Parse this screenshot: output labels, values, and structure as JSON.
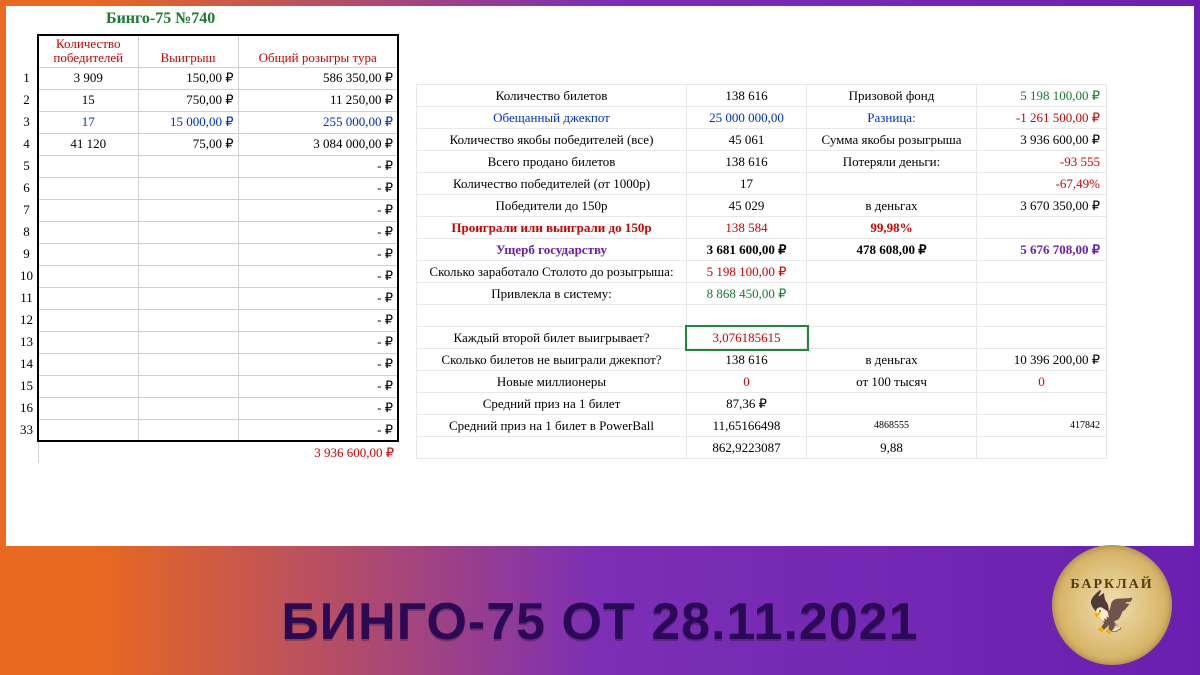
{
  "title": "Бинго-75 №740",
  "colors": {
    "red": "#d00000",
    "blue": "#0030c0",
    "green": "#1a7a2e",
    "purple": "#6a1fb0",
    "black": "#000000"
  },
  "left": {
    "headers": [
      "Количество победителей",
      "Выигрыш",
      "Общий розыгры тура"
    ],
    "rows": [
      {
        "n": "1",
        "w": "3 909",
        "p": "150,00 ₽",
        "t": "586 350,00 ₽",
        "c": "black"
      },
      {
        "n": "2",
        "w": "15",
        "p": "750,00 ₽",
        "t": "11 250,00 ₽",
        "c": "black"
      },
      {
        "n": "3",
        "w": "17",
        "p": "15 000,00 ₽",
        "t": "255 000,00 ₽",
        "c": "blue"
      },
      {
        "n": "4",
        "w": "41 120",
        "p": "75,00 ₽",
        "t": "3 084 000,00 ₽",
        "c": "black"
      },
      {
        "n": "5",
        "w": "",
        "p": "",
        "t": "-   ₽",
        "c": "black"
      },
      {
        "n": "6",
        "w": "",
        "p": "",
        "t": "-   ₽",
        "c": "black"
      },
      {
        "n": "7",
        "w": "",
        "p": "",
        "t": "-   ₽",
        "c": "black"
      },
      {
        "n": "8",
        "w": "",
        "p": "",
        "t": "-   ₽",
        "c": "black"
      },
      {
        "n": "9",
        "w": "",
        "p": "",
        "t": "-   ₽",
        "c": "black"
      },
      {
        "n": "10",
        "w": "",
        "p": "",
        "t": "-   ₽",
        "c": "black"
      },
      {
        "n": "11",
        "w": "",
        "p": "",
        "t": "-   ₽",
        "c": "black"
      },
      {
        "n": "12",
        "w": "",
        "p": "",
        "t": "-   ₽",
        "c": "black"
      },
      {
        "n": "13",
        "w": "",
        "p": "",
        "t": "-   ₽",
        "c": "black"
      },
      {
        "n": "14",
        "w": "",
        "p": "",
        "t": "-   ₽",
        "c": "black"
      },
      {
        "n": "15",
        "w": "",
        "p": "",
        "t": "-   ₽",
        "c": "black"
      },
      {
        "n": "16",
        "w": "",
        "p": "",
        "t": "-   ₽",
        "c": "black"
      },
      {
        "n": "33",
        "w": "",
        "p": "",
        "t": "-   ₽",
        "c": "black"
      }
    ],
    "total": "3 936 600,00 ₽"
  },
  "right": [
    {
      "lbl": "Количество билетов",
      "lc": "black",
      "v1": "138 616",
      "v1c": "black",
      "lbl2": "Призовой фонд",
      "l2c": "black",
      "v2": "5 198 100,00 ₽",
      "v2c": "green"
    },
    {
      "lbl": "Обещанный джекпот",
      "lc": "blue",
      "v1": "25 000 000,00",
      "v1c": "blue",
      "lbl2": "Разница:",
      "l2c": "blue",
      "v2": "-1 261 500,00 ₽",
      "v2c": "red"
    },
    {
      "lbl": "Количество якобы победителей (все)",
      "lc": "black",
      "v1": "45 061",
      "v1c": "black",
      "lbl2": "Сумма якобы розыгрыша",
      "l2c": "black",
      "v2": "3 936 600,00 ₽",
      "v2c": "black"
    },
    {
      "lbl": "Всего продано билетов",
      "lc": "black",
      "v1": "138 616",
      "v1c": "black",
      "lbl2": "Потеряли деньги:",
      "l2c": "black",
      "v2": "-93 555",
      "v2c": "red"
    },
    {
      "lbl": "Количество победителей (от 1000р)",
      "lc": "black",
      "v1": "17",
      "v1c": "black",
      "lbl2": "",
      "l2c": "black",
      "v2": "-67,49%",
      "v2c": "red"
    },
    {
      "lbl": "Победители до 150р",
      "lc": "black",
      "v1": "45 029",
      "v1c": "black",
      "lbl2": "в деньгах",
      "l2c": "black",
      "v2": "3 670 350,00 ₽",
      "v2c": "black"
    },
    {
      "lbl": "Проиграли или выиграли до 150р",
      "lc": "red",
      "bold": true,
      "v1": "138 584",
      "v1c": "red",
      "lbl2": "99,98%",
      "l2c": "red",
      "l2bold": true,
      "v2": "",
      "v2c": "black"
    },
    {
      "lbl": "Ущерб государству",
      "lc": "purple",
      "bold": true,
      "v1": "3 681 600,00 ₽",
      "v1c": "black",
      "v1bold": true,
      "lbl2": "478 608,00 ₽",
      "l2c": "black",
      "l2bold": true,
      "v2": "5 676 708,00 ₽",
      "v2c": "purple",
      "v2bold": true
    },
    {
      "lbl": "Сколько заработало Столото до розыгрыша:",
      "lc": "black",
      "v1": "5 198 100,00 ₽",
      "v1c": "red",
      "lbl2": "",
      "l2c": "black",
      "v2": "",
      "v2c": "black"
    },
    {
      "lbl": "Привлекла в систему:",
      "lc": "black",
      "v1": "8 868 450,00 ₽",
      "v1c": "green",
      "lbl2": "",
      "l2c": "black",
      "v2": "",
      "v2c": "black"
    },
    {
      "lbl": "",
      "lc": "black",
      "v1": "",
      "v1c": "black",
      "lbl2": "",
      "l2c": "black",
      "v2": "",
      "v2c": "black"
    },
    {
      "lbl": "Каждый второй билет выигрывает?",
      "lc": "black",
      "v1": "3,076185615",
      "v1c": "red",
      "v1box": true,
      "lbl2": "",
      "l2c": "black",
      "v2": "",
      "v2c": "black"
    },
    {
      "lbl": "Сколько билетов не выиграли джекпот?",
      "lc": "black",
      "v1": "138 616",
      "v1c": "black",
      "lbl2": "в деньгах",
      "l2c": "black",
      "v2": "10 396 200,00 ₽",
      "v2c": "black"
    },
    {
      "lbl": "Новые миллионеры",
      "lc": "black",
      "v1": "0",
      "v1c": "red",
      "lbl2": "от 100 тысяч",
      "l2c": "black",
      "v2": "0",
      "v2c": "red",
      "v2align": "center"
    },
    {
      "lbl": "Средний приз на 1 билет",
      "lc": "black",
      "v1": "87,36 ₽",
      "v1c": "black",
      "lbl2": "",
      "l2c": "black",
      "v2": "",
      "v2c": "black"
    },
    {
      "lbl": "Средний приз на 1 билет в PowerBall",
      "lc": "black",
      "v1": "11,65166498",
      "v1c": "black",
      "lbl2": "4868555",
      "l2c": "black",
      "l2small": true,
      "v2": "417842",
      "v2c": "black",
      "v2small": true
    },
    {
      "lbl": "",
      "lc": "black",
      "v1": "862,9223087",
      "v1c": "black",
      "lbl2": "9,88",
      "l2c": "black",
      "v2": "",
      "v2c": "black"
    }
  ],
  "banner": "БИНГО-75 ОТ 28.11.2021",
  "logo": "БАРКЛАЙ"
}
